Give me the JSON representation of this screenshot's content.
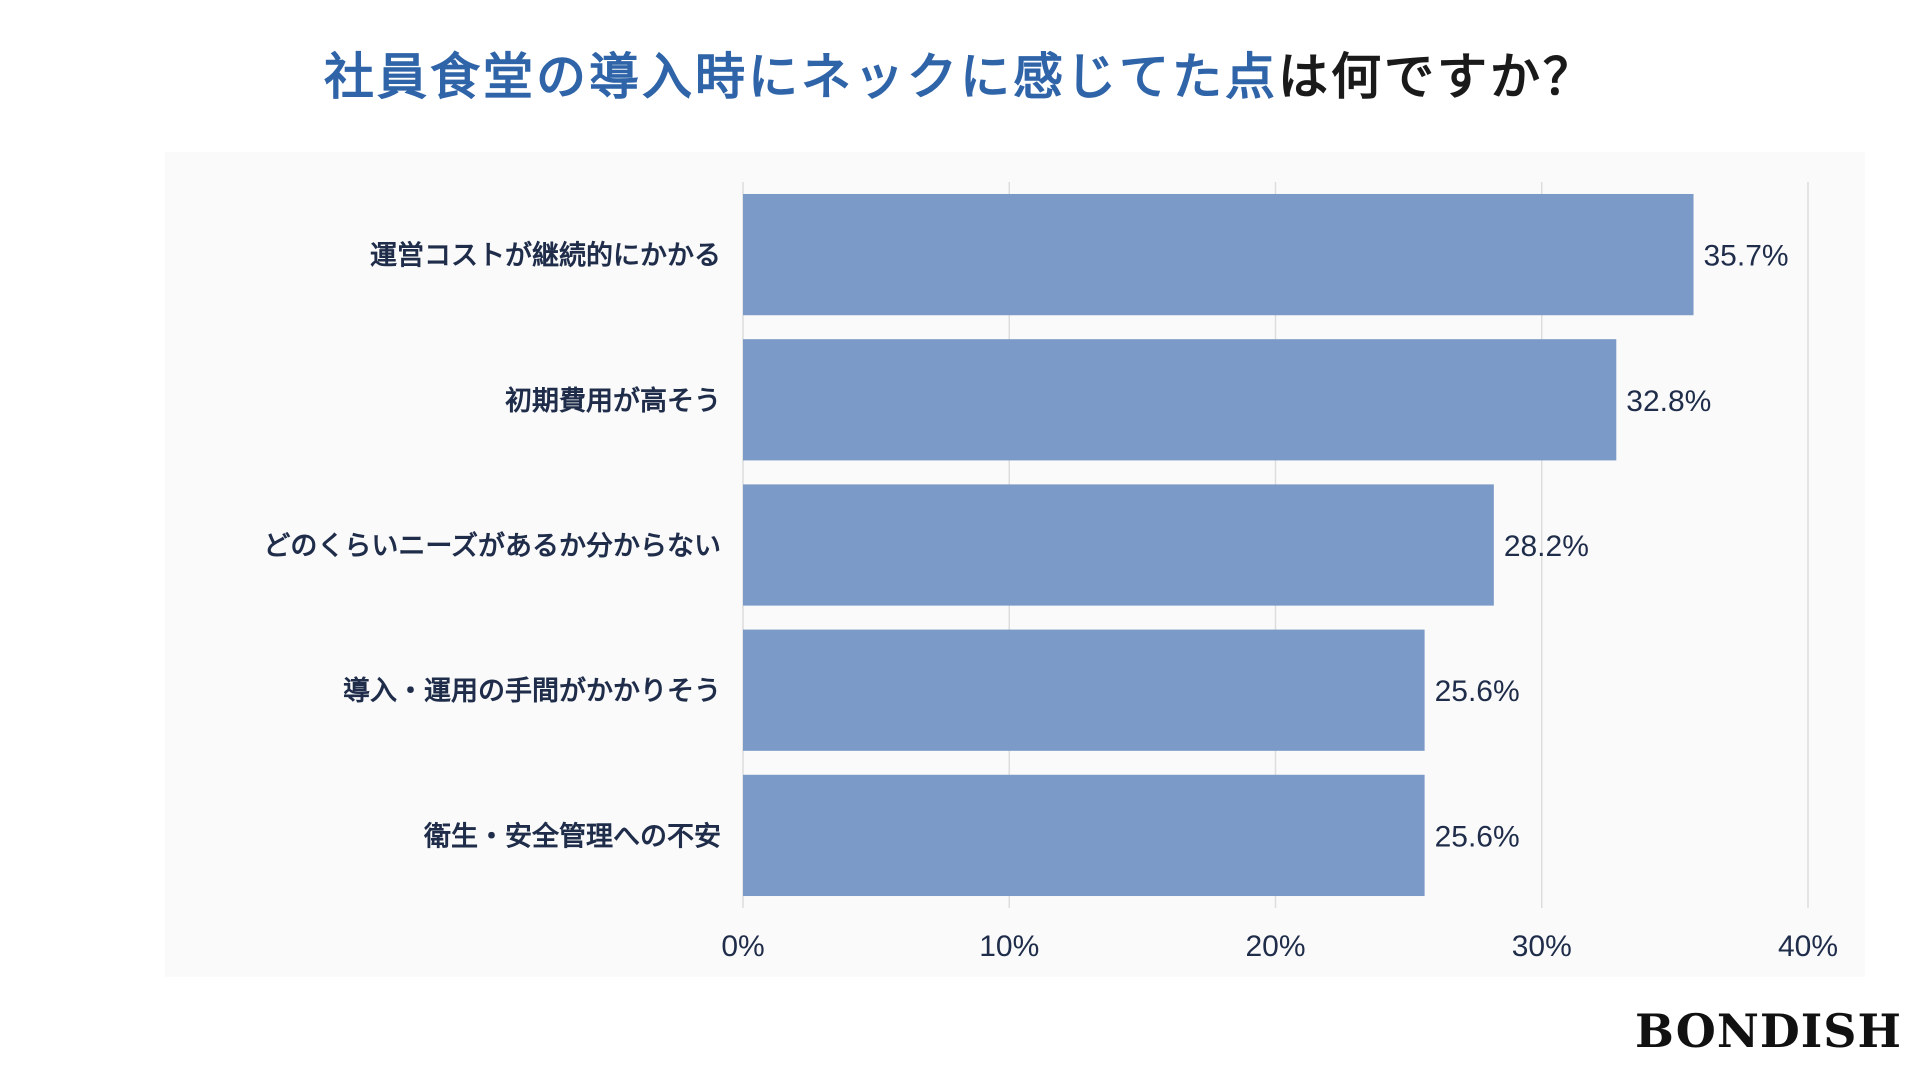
{
  "title": {
    "highlight": "社員食堂の導入時にネックに感じてた点",
    "rest": "は何ですか？"
  },
  "brand": "BONDISH",
  "colors": {
    "bar": "#7b9ac7",
    "title_accent": "#2f64a8",
    "text": "#1f2d4a",
    "grid": "#dddddd"
  },
  "chart_data": {
    "type": "bar",
    "orientation": "horizontal",
    "categories": [
      "運営コストが継続的にかかる",
      "初期費用が高そう",
      "どのくらいニーズがあるか分からない",
      "導入・運用の手間がかかりそう",
      "衛生・安全管理への不安"
    ],
    "values": [
      35.7,
      32.8,
      28.2,
      25.6,
      25.6
    ],
    "value_labels": [
      "35.7%",
      "32.8%",
      "28.2%",
      "25.6%",
      "25.6%"
    ],
    "xlim": [
      0,
      40
    ],
    "xticks": [
      0,
      10,
      20,
      30,
      40
    ],
    "xtick_labels": [
      "0%",
      "10%",
      "20%",
      "30%",
      "40%"
    ],
    "grid": true,
    "legend": "none"
  }
}
